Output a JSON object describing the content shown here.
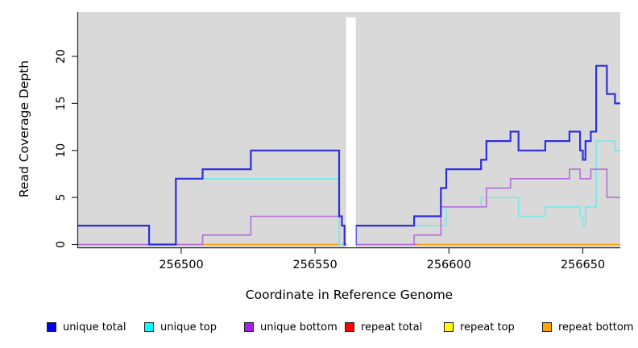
{
  "chart_data": {
    "type": "line",
    "subtype": "step-coverage",
    "title": "",
    "xlabel": "Coordinate in Reference Genome",
    "ylabel": "Read Coverage Depth",
    "xlim": [
      256461.5,
      256664
    ],
    "ylim": [
      0,
      24.7
    ],
    "x_ticks": [
      256500,
      256550,
      256600,
      256650
    ],
    "x_tick_labels": [
      "256500",
      "256550",
      "256600",
      "256650"
    ],
    "y_ticks": [
      0,
      5,
      10,
      15,
      20
    ],
    "y_tick_labels": [
      "0",
      "5",
      "10",
      "15",
      "20"
    ],
    "grid": false,
    "plot_bg": "#d9d9d9",
    "axis_color": "#2a2a2a",
    "gap_band": {
      "x_start": 256561.6,
      "x_end": 256565.2,
      "color": "#ffffff"
    },
    "series": [
      {
        "name": "repeat top",
        "color": "#ffff00",
        "width": 1.4,
        "points": [
          [
            256461.5,
            0
          ],
          [
            256664,
            0
          ]
        ]
      },
      {
        "name": "repeat bottom",
        "color": "#ffa008",
        "width": 1.8,
        "value": 0,
        "ranges": [
          [
            256508,
            256561.6
          ],
          [
            256588,
            256664
          ]
        ]
      },
      {
        "name": "repeat total",
        "color": "#e5506e",
        "width": 1.6,
        "value": 0,
        "ranges": [
          [
            256461.5,
            256508
          ],
          [
            256565.2,
            256588
          ]
        ]
      },
      {
        "name": "unique top",
        "color": "#78e6e6",
        "width": 1.6,
        "points": [
          [
            256461.5,
            2
          ],
          [
            256488,
            0
          ],
          [
            256498,
            7
          ],
          [
            256559,
            0
          ],
          [
            256565.2,
            2
          ],
          [
            256599,
            4
          ],
          [
            256612,
            5
          ],
          [
            256626,
            3
          ],
          [
            256636,
            4
          ],
          [
            256649,
            3
          ],
          [
            256650,
            2
          ],
          [
            256651,
            4
          ],
          [
            256655,
            11
          ],
          [
            256662,
            10
          ],
          [
            256664,
            10
          ]
        ]
      },
      {
        "name": "unique bottom",
        "color": "#b46fd5",
        "width": 1.6,
        "points": [
          [
            256461.5,
            0
          ],
          [
            256508,
            1
          ],
          [
            256526,
            3
          ],
          [
            256560,
            2
          ],
          [
            256561,
            0
          ],
          [
            256587,
            1
          ],
          [
            256597,
            4
          ],
          [
            256614,
            6
          ],
          [
            256623,
            7
          ],
          [
            256645,
            8
          ],
          [
            256649,
            7
          ],
          [
            256653,
            8
          ],
          [
            256659,
            5
          ],
          [
            256664,
            5
          ]
        ]
      },
      {
        "name": "unique total",
        "color": "#2d2de0",
        "width": 2.2,
        "points": [
          [
            256461.5,
            2
          ],
          [
            256488,
            0
          ],
          [
            256498,
            7
          ],
          [
            256508,
            8
          ],
          [
            256526,
            10
          ],
          [
            256559,
            3
          ],
          [
            256560,
            2
          ],
          [
            256561,
            0
          ],
          [
            256565.2,
            2
          ],
          [
            256587,
            3
          ],
          [
            256597,
            6
          ],
          [
            256599,
            8
          ],
          [
            256612,
            9
          ],
          [
            256614,
            11
          ],
          [
            256623,
            12
          ],
          [
            256626,
            10
          ],
          [
            256636,
            11
          ],
          [
            256645,
            12
          ],
          [
            256649,
            10
          ],
          [
            256650,
            9
          ],
          [
            256651,
            11
          ],
          [
            256653,
            12
          ],
          [
            256655,
            19
          ],
          [
            256659,
            16
          ],
          [
            256662,
            15
          ],
          [
            256664,
            15
          ]
        ]
      }
    ]
  },
  "legend": {
    "items": [
      {
        "label": "unique total",
        "color": "#0000f0"
      },
      {
        "label": "unique top",
        "color": "#00ffff"
      },
      {
        "label": "unique bottom",
        "color": "#a020f0"
      },
      {
        "label": "repeat total",
        "color": "#ff0000"
      },
      {
        "label": "repeat top",
        "color": "#ffff00"
      },
      {
        "label": "repeat bottom",
        "color": "#ffa500"
      }
    ]
  }
}
